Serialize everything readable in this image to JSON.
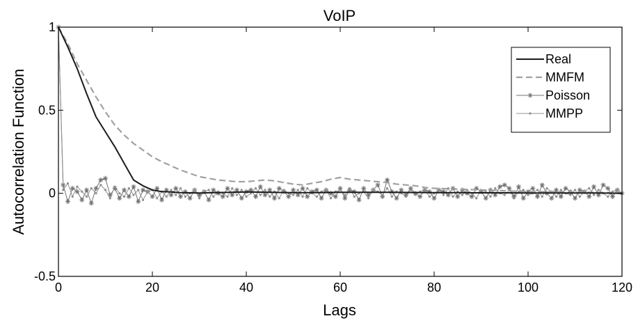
{
  "chart_data": {
    "type": "line",
    "title": "VoIP",
    "xlabel": "Lags",
    "ylabel": "Autocorrelation Function",
    "xlim": [
      0,
      120
    ],
    "ylim": [
      -0.5,
      1
    ],
    "xticks": [
      0,
      20,
      40,
      60,
      80,
      100,
      120
    ],
    "yticks": [
      -0.5,
      0,
      0.5,
      1
    ],
    "xtick_labels": [
      "0",
      "20",
      "40",
      "60",
      "80",
      "100",
      "120"
    ],
    "ytick_labels": [
      "-0.5",
      "0",
      "0.5",
      "1"
    ],
    "grid": false,
    "legend_position": "top-right",
    "series": [
      {
        "name": "Real",
        "color": "#1a1a1a",
        "style": "solid",
        "marker": "none",
        "x": [
          0,
          2,
          4,
          6,
          8,
          10,
          12,
          14,
          16,
          18,
          20,
          22,
          24,
          26,
          28,
          30,
          35,
          40,
          45,
          50,
          55,
          60,
          65,
          70,
          75,
          80,
          85,
          90,
          95,
          100,
          105,
          110,
          115,
          120
        ],
        "values": [
          1.0,
          0.88,
          0.75,
          0.6,
          0.46,
          0.37,
          0.28,
          0.18,
          0.08,
          0.045,
          0.02,
          0.01,
          0.008,
          0.004,
          0.003,
          0.002,
          0.005,
          0.008,
          0.006,
          0.004,
          0.004,
          0.006,
          0.006,
          0.006,
          0.005,
          0.004,
          0.004,
          0.003,
          0.003,
          0.002,
          0.002,
          0.002,
          0.002,
          0.0
        ]
      },
      {
        "name": "MMFM",
        "color": "#a0a0a0",
        "style": "dashed",
        "marker": "none",
        "x": [
          0,
          2,
          4,
          6,
          8,
          10,
          12,
          14,
          16,
          18,
          20,
          22,
          24,
          26,
          28,
          30,
          32,
          34,
          36,
          38,
          40,
          42,
          44,
          46,
          48,
          50,
          52,
          54,
          56,
          58,
          60,
          62,
          64,
          66,
          68,
          70,
          72,
          74,
          76,
          78,
          80,
          85,
          90,
          95,
          100,
          105,
          110,
          115,
          120
        ],
        "values": [
          1.0,
          0.9,
          0.78,
          0.68,
          0.58,
          0.49,
          0.41,
          0.35,
          0.3,
          0.26,
          0.22,
          0.19,
          0.165,
          0.14,
          0.12,
          0.1,
          0.09,
          0.08,
          0.075,
          0.07,
          0.07,
          0.075,
          0.08,
          0.075,
          0.065,
          0.055,
          0.05,
          0.06,
          0.07,
          0.085,
          0.095,
          0.085,
          0.08,
          0.075,
          0.07,
          0.065,
          0.055,
          0.05,
          0.045,
          0.035,
          0.03,
          0.025,
          0.02,
          0.015,
          0.01,
          0.01,
          0.008,
          0.005,
          0.003
        ]
      },
      {
        "name": "Poisson",
        "color": "#707070",
        "style": "solid",
        "marker": "asterisk",
        "x": [
          0,
          1,
          2,
          3,
          4,
          5,
          6,
          7,
          8,
          9,
          10,
          11,
          12,
          13,
          14,
          15,
          16,
          17,
          18,
          19,
          20,
          21,
          22,
          23,
          24,
          25,
          26,
          27,
          28,
          29,
          30,
          31,
          32,
          33,
          34,
          35,
          36,
          37,
          38,
          39,
          40,
          41,
          42,
          43,
          44,
          45,
          46,
          47,
          48,
          49,
          50,
          51,
          52,
          53,
          54,
          55,
          56,
          57,
          58,
          59,
          60,
          61,
          62,
          63,
          64,
          65,
          66,
          67,
          68,
          69,
          70,
          71,
          72,
          73,
          74,
          75,
          76,
          77,
          78,
          79,
          80,
          81,
          82,
          83,
          84,
          85,
          86,
          87,
          88,
          89,
          90,
          91,
          92,
          93,
          94,
          95,
          96,
          97,
          98,
          99,
          100,
          101,
          102,
          103,
          104,
          105,
          106,
          107,
          108,
          109,
          110,
          111,
          112,
          113,
          114,
          115,
          116,
          117,
          118,
          119,
          120
        ],
        "values": [
          1.0,
          0.05,
          -0.05,
          0.03,
          0.01,
          -0.04,
          0.02,
          -0.06,
          0.03,
          0.08,
          0.09,
          -0.01,
          0.03,
          -0.03,
          0.02,
          -0.02,
          0.04,
          -0.05,
          0.02,
          0.01,
          -0.02,
          0.03,
          -0.04,
          0.02,
          -0.01,
          0.03,
          -0.02,
          0.01,
          -0.03,
          0.02,
          -0.01,
          0.01,
          -0.04,
          0.02,
          0.0,
          -0.02,
          0.03,
          -0.01,
          0.02,
          -0.03,
          0.01,
          0.02,
          -0.02,
          0.04,
          -0.01,
          0.02,
          -0.03,
          0.03,
          0.01,
          -0.02,
          0.02,
          -0.01,
          0.03,
          -0.02,
          0.01,
          0.02,
          -0.03,
          0.02,
          0.0,
          -0.02,
          0.03,
          -0.03,
          0.02,
          0.01,
          -0.04,
          0.03,
          -0.01,
          0.02,
          0.05,
          -0.02,
          0.08,
          0.01,
          -0.03,
          0.02,
          -0.01,
          0.03,
          0.0,
          -0.02,
          0.02,
          0.01,
          -0.03,
          0.02,
          0.01,
          -0.01,
          0.03,
          -0.02,
          0.02,
          0.0,
          -0.02,
          0.03,
          0.01,
          -0.03,
          0.02,
          -0.01,
          0.04,
          0.05,
          0.03,
          -0.02,
          0.04,
          -0.03,
          0.01,
          0.03,
          -0.02,
          0.05,
          0.0,
          -0.03,
          0.02,
          -0.02,
          0.03,
          0.01,
          -0.03,
          0.02,
          0.01,
          -0.02,
          0.04,
          -0.01,
          0.05,
          0.03,
          -0.02,
          0.02,
          0.0
        ]
      },
      {
        "name": "MMPP",
        "color": "#909090",
        "style": "solid",
        "marker": "dot",
        "x": [
          0,
          1,
          2,
          3,
          4,
          5,
          6,
          7,
          8,
          9,
          10,
          11,
          12,
          13,
          14,
          15,
          16,
          17,
          18,
          19,
          20,
          21,
          22,
          23,
          24,
          25,
          26,
          27,
          28,
          29,
          30,
          31,
          32,
          33,
          34,
          35,
          36,
          37,
          38,
          39,
          40,
          41,
          42,
          43,
          44,
          45,
          46,
          47,
          48,
          49,
          50,
          51,
          52,
          53,
          54,
          55,
          56,
          57,
          58,
          59,
          60,
          61,
          62,
          63,
          64,
          65,
          66,
          67,
          68,
          69,
          70,
          71,
          72,
          73,
          74,
          75,
          76,
          77,
          78,
          79,
          80,
          81,
          82,
          83,
          84,
          85,
          86,
          87,
          88,
          89,
          90,
          91,
          92,
          93,
          94,
          95,
          96,
          97,
          98,
          99,
          100,
          101,
          102,
          103,
          104,
          105,
          106,
          107,
          108,
          109,
          110,
          111,
          112,
          113,
          114,
          115,
          116,
          117,
          118,
          119,
          120
        ],
        "values": [
          1.0,
          0.02,
          0.06,
          -0.02,
          0.04,
          0.01,
          -0.02,
          0.03,
          0.0,
          0.05,
          0.02,
          -0.03,
          0.04,
          0.0,
          -0.02,
          0.03,
          -0.01,
          0.02,
          -0.04,
          0.01,
          0.02,
          -0.03,
          0.01,
          -0.02,
          0.02,
          -0.01,
          0.03,
          -0.02,
          0.0,
          0.02,
          -0.03,
          0.01,
          0.02,
          -0.02,
          0.01,
          0.0,
          -0.02,
          0.03,
          -0.01,
          0.02,
          -0.02,
          0.0,
          0.03,
          -0.01,
          0.02,
          -0.02,
          0.01,
          -0.03,
          0.02,
          0.0,
          -0.01,
          0.02,
          -0.02,
          0.03,
          0.0,
          -0.02,
          0.01,
          0.02,
          -0.03,
          0.01,
          0.02,
          -0.01,
          0.03,
          -0.02,
          0.0,
          0.01,
          -0.03,
          0.02,
          0.01,
          -0.01,
          0.03,
          -0.02,
          0.01,
          0.0,
          -0.02,
          0.02,
          -0.01,
          0.01,
          0.02,
          -0.02,
          0.0,
          0.02,
          -0.01,
          0.03,
          -0.02,
          0.01,
          -0.01,
          0.02,
          0.0,
          -0.03,
          0.02,
          0.01,
          -0.02,
          0.03,
          0.0,
          -0.01,
          0.02,
          -0.03,
          0.01,
          0.02,
          -0.01,
          0.0,
          0.02,
          -0.02,
          0.03,
          0.01,
          -0.02,
          0.02,
          0.0,
          -0.01,
          0.02,
          -0.02,
          0.01,
          0.03,
          -0.01,
          0.02,
          0.0,
          -0.02,
          0.01,
          0.02,
          0.0
        ]
      }
    ]
  }
}
